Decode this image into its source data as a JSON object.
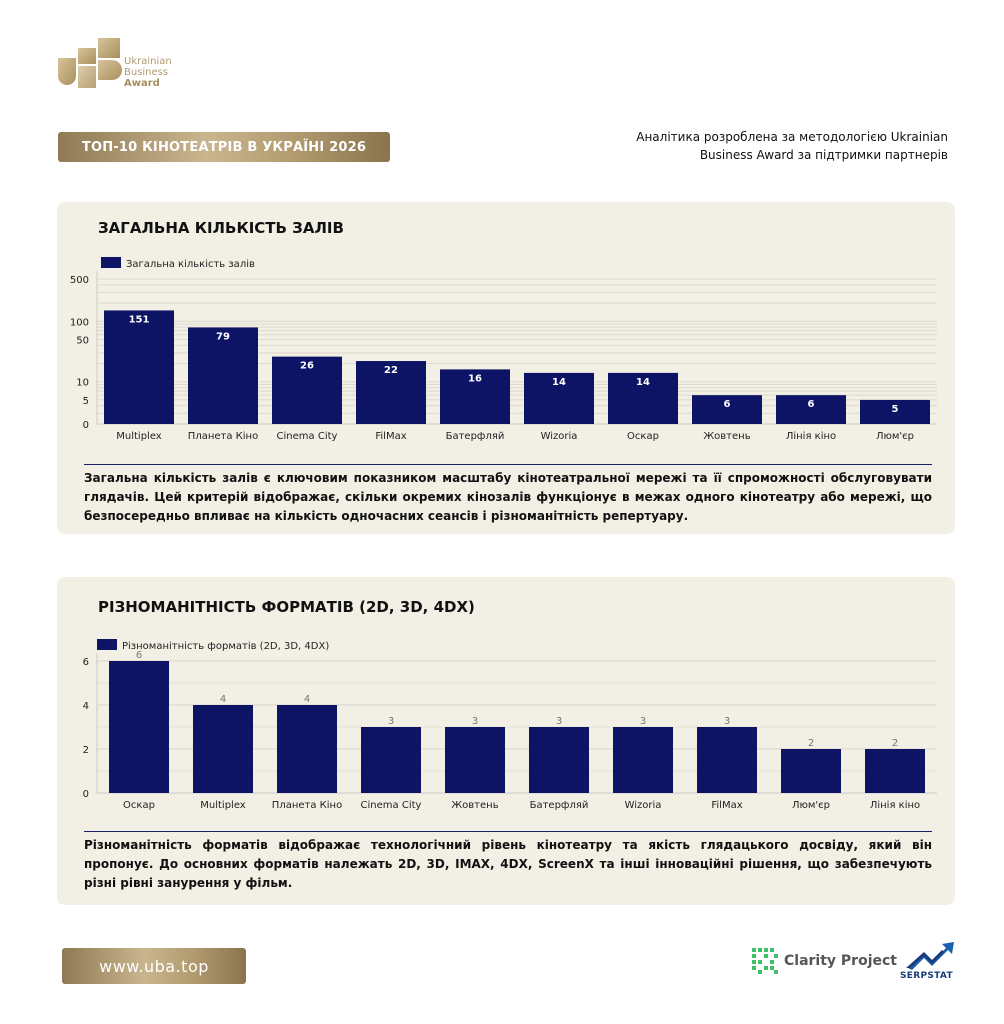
{
  "brand": {
    "logo_line1": "Ukrainian",
    "logo_line2": "Business",
    "logo_line3": "Award",
    "gold_color": "#b39c70"
  },
  "header": {
    "title": "ТОП-10 КІНОТЕАТРІВ В УКРАЇНІ 2026",
    "note": "Аналітика розроблена за методологією Ukrainian Business Award за підтримки партнерів"
  },
  "section1": {
    "title": "ЗАГАЛЬНА КІЛЬКІСТЬ ЗАЛІВ",
    "description": "Загальна кількість залів є ключовим показником масштабу кінотеатральної мережі та її спроможності обслуговувати глядачів. Цей критерій відображає, скільки окремих кінозалів функціонує в межах одного кінотеатру або мережі, що безпосередньо впливає на кількість одночасних сеансів і різноманітність репертуару."
  },
  "section2": {
    "title": "РІЗНОМАНІТНІСТЬ ФОРМАТІВ (2D, 3D, 4DX)",
    "description": "Різноманітність форматів відображає технологічний рівень кінотеатру та якість глядацького досвіду, який він пропонує. До основних форматів належать 2D, 3D, IMAX, 4DX, ScreenX та інші інноваційні рішення, що забезпечують різні рівні занурення у фільм."
  },
  "chart_data": [
    {
      "type": "bar",
      "scale": "log",
      "legend_placement": "top-left",
      "grid": true,
      "categories": [
        "Multiplex",
        "Планета Кіно",
        "Cinema City",
        "FilMax",
        "Батерфляй",
        "Wizoria",
        "Оскар",
        "Жовтень",
        "Лінія кіно",
        "Люм'єр"
      ],
      "series": [
        {
          "name": "Загальна кількість залів",
          "color": "#0d1466",
          "values": [
            151,
            79,
            26,
            22,
            16,
            14,
            14,
            6,
            6,
            5
          ]
        }
      ],
      "yticks": [
        0,
        5,
        10,
        50,
        100,
        500
      ],
      "ylim": [
        0,
        500
      ],
      "label_color": "#ffffff"
    },
    {
      "type": "bar",
      "scale": "linear",
      "legend_placement": "top-left",
      "grid": true,
      "categories": [
        "Оскар",
        "Multiplex",
        "Планета Кіно",
        "Cinema City",
        "Жовтень",
        "Батерфляй",
        "Wizoria",
        "FilMax",
        "Люм'єр",
        "Лінія кіно"
      ],
      "series": [
        {
          "name": "Різноманітність форматів (2D, 3D, 4DX)",
          "color": "#0d1466",
          "values": [
            6,
            4,
            4,
            3,
            3,
            3,
            3,
            3,
            2,
            2
          ]
        }
      ],
      "yticks": [
        0,
        2,
        4,
        6
      ],
      "ylim": [
        0,
        6
      ],
      "label_color": "#777777"
    }
  ],
  "footer": {
    "url": "www.uba.top",
    "partner1": "Clarity Project",
    "partner2": "SERPSTAT"
  }
}
